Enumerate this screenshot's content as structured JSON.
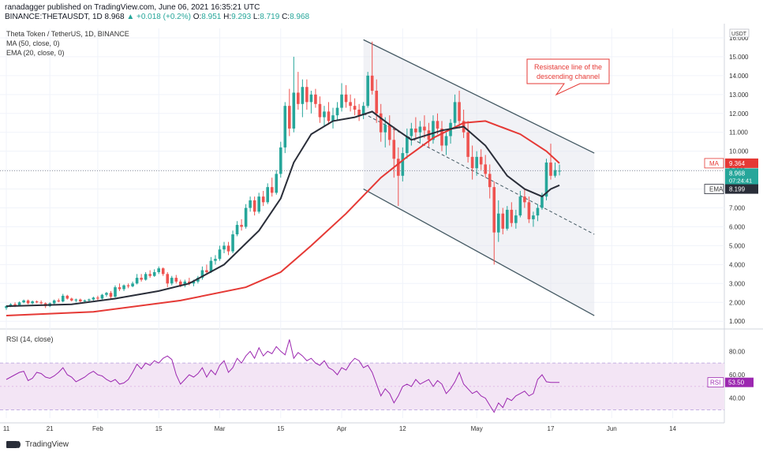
{
  "header": {
    "line1": "ranadagger published on TradingView.com, June 06, 2021 16:35:21 UTC",
    "symbol": "BINANCE:THETAUSDT, 1D",
    "last": "8.968",
    "change": "▲ +0.018 (+0.2%)",
    "ohlc_o_label": "O:",
    "ohlc_o": "8.951",
    "ohlc_h_label": "H:",
    "ohlc_h": "9.293",
    "ohlc_l_label": "L:",
    "ohlc_l": "8.719",
    "ohlc_c_label": "C:",
    "ohlc_c": "8.968"
  },
  "legend": {
    "title": "Theta Token / TetherUS, 1D, BINANCE",
    "ma": "MA (50, close, 0)",
    "ema": "EMA (20, close, 0)",
    "rsi": "RSI (14, close)"
  },
  "annotation": "Resistance line of the descending channel",
  "footer": {
    "brand": "TradingView"
  },
  "colors": {
    "up": "#26a69a",
    "down": "#ef5350",
    "ma": "#e53935",
    "ema": "#2a2e39",
    "rsi": "#9c27b0",
    "rsi_band": "#f3e5f5",
    "channel": "#455a64",
    "channel_fill": "#e0e3eb"
  },
  "chart_data": [
    {
      "type": "candlestick",
      "title": "Theta Token / TetherUS, 1D, BINANCE",
      "currency": "USDT",
      "y_ticks": [
        "1.000",
        "2.000",
        "3.000",
        "4.000",
        "5.000",
        "6.000",
        "7.000",
        "8.000",
        "9.000",
        "10.000",
        "11.000",
        "12.000",
        "13.000",
        "14.000",
        "15.000",
        "16.000"
      ],
      "x_ticks": [
        "11",
        "21",
        "Feb",
        "15",
        "Mar",
        "15",
        "Apr",
        "12",
        "May",
        "17",
        "Jun",
        "14"
      ],
      "ylim": [
        0.8,
        16.5
      ],
      "price_labels": {
        "ma": {
          "label": "MA",
          "value": "9.364"
        },
        "price": {
          "value": "8.968",
          "countdown": "07:24:41"
        },
        "ema": {
          "label": "EMA",
          "value": "8.199"
        }
      },
      "candles": [
        [
          1.7,
          1.85,
          1.6,
          1.8
        ],
        [
          1.8,
          1.95,
          1.75,
          1.9
        ],
        [
          1.9,
          2.0,
          1.75,
          1.8
        ],
        [
          1.8,
          2.05,
          1.78,
          2.0
        ],
        [
          2.0,
          2.15,
          1.95,
          2.1
        ],
        [
          2.1,
          2.15,
          1.9,
          1.95
        ],
        [
          1.95,
          2.1,
          1.9,
          2.05
        ],
        [
          2.05,
          2.1,
          1.95,
          2.0
        ],
        [
          2.0,
          2.1,
          1.9,
          1.95
        ],
        [
          1.95,
          2.0,
          1.7,
          1.8
        ],
        [
          1.8,
          2.0,
          1.75,
          1.95
        ],
        [
          1.95,
          2.15,
          1.9,
          2.1
        ],
        [
          2.1,
          2.2,
          2.0,
          2.05
        ],
        [
          2.05,
          2.45,
          2.0,
          2.35
        ],
        [
          2.35,
          2.4,
          2.15,
          2.2
        ],
        [
          2.2,
          2.25,
          2.05,
          2.1
        ],
        [
          2.1,
          2.2,
          2.0,
          2.15
        ],
        [
          2.15,
          2.2,
          2.0,
          2.05
        ],
        [
          2.05,
          2.15,
          1.95,
          2.1
        ],
        [
          2.1,
          2.2,
          2.0,
          2.15
        ],
        [
          2.15,
          2.3,
          2.1,
          2.25
        ],
        [
          2.25,
          2.35,
          2.1,
          2.2
        ],
        [
          2.2,
          2.45,
          2.15,
          2.4
        ],
        [
          2.4,
          2.55,
          2.3,
          2.5
        ],
        [
          2.5,
          2.6,
          2.2,
          2.3
        ],
        [
          2.3,
          2.9,
          2.25,
          2.8
        ],
        [
          2.8,
          3.0,
          2.6,
          2.7
        ],
        [
          2.7,
          2.95,
          2.6,
          2.9
        ],
        [
          2.9,
          3.0,
          2.75,
          2.85
        ],
        [
          2.85,
          3.1,
          2.8,
          3.0
        ],
        [
          3.0,
          3.5,
          2.95,
          3.3
        ],
        [
          3.3,
          3.5,
          3.1,
          3.2
        ],
        [
          3.2,
          3.6,
          3.15,
          3.5
        ],
        [
          3.5,
          3.7,
          3.3,
          3.4
        ],
        [
          3.4,
          3.75,
          3.35,
          3.6
        ],
        [
          3.6,
          3.9,
          3.5,
          3.8
        ],
        [
          3.8,
          3.85,
          3.4,
          3.5
        ],
        [
          3.5,
          3.6,
          2.8,
          3.0
        ],
        [
          3.0,
          3.4,
          2.9,
          3.3
        ],
        [
          3.3,
          3.45,
          3.0,
          3.1
        ],
        [
          3.1,
          3.2,
          2.8,
          2.9
        ],
        [
          2.9,
          3.2,
          2.8,
          3.1
        ],
        [
          3.1,
          3.3,
          2.9,
          3.0
        ],
        [
          3.0,
          3.2,
          2.85,
          3.1
        ],
        [
          3.1,
          3.4,
          3.0,
          3.3
        ],
        [
          3.3,
          3.9,
          3.2,
          3.7
        ],
        [
          3.7,
          4.0,
          3.5,
          3.6
        ],
        [
          3.6,
          4.4,
          3.55,
          4.2
        ],
        [
          4.2,
          4.5,
          4.0,
          4.3
        ],
        [
          4.3,
          5.0,
          4.2,
          4.8
        ],
        [
          4.8,
          5.2,
          4.6,
          5.0
        ],
        [
          5.0,
          5.2,
          4.5,
          4.7
        ],
        [
          4.7,
          5.8,
          4.6,
          5.6
        ],
        [
          5.6,
          6.3,
          5.5,
          6.1
        ],
        [
          6.1,
          6.4,
          5.8,
          6.0
        ],
        [
          6.0,
          7.2,
          5.9,
          7.0
        ],
        [
          7.0,
          7.6,
          6.8,
          7.4
        ],
        [
          7.4,
          7.6,
          6.6,
          6.8
        ],
        [
          6.8,
          7.8,
          6.7,
          7.6
        ],
        [
          7.6,
          7.9,
          7.1,
          7.3
        ],
        [
          7.3,
          8.3,
          7.2,
          8.1
        ],
        [
          8.1,
          8.6,
          7.6,
          7.8
        ],
        [
          7.8,
          9.0,
          7.7,
          8.8
        ],
        [
          8.8,
          10.5,
          8.6,
          10.2
        ],
        [
          10.2,
          12.6,
          9.9,
          12.4
        ],
        [
          12.4,
          13.3,
          10.8,
          11.2
        ],
        [
          11.2,
          15.0,
          11.0,
          13.1
        ],
        [
          13.1,
          14.2,
          12.2,
          12.5
        ],
        [
          12.5,
          13.8,
          11.8,
          13.4
        ],
        [
          13.4,
          13.8,
          12.2,
          12.6
        ],
        [
          12.6,
          13.2,
          12.0,
          13.0
        ],
        [
          13.0,
          13.3,
          12.3,
          12.5
        ],
        [
          12.5,
          12.9,
          11.5,
          11.8
        ],
        [
          11.8,
          12.4,
          11.3,
          12.1
        ],
        [
          12.1,
          12.6,
          11.4,
          11.6
        ],
        [
          11.6,
          12.3,
          11.2,
          11.9
        ],
        [
          11.9,
          12.6,
          11.6,
          12.3
        ],
        [
          12.3,
          13.6,
          12.1,
          13.0
        ],
        [
          13.0,
          13.5,
          12.3,
          12.6
        ],
        [
          12.6,
          13.0,
          12.1,
          12.4
        ],
        [
          12.4,
          12.8,
          11.9,
          12.2
        ],
        [
          12.2,
          12.5,
          11.6,
          11.9
        ],
        [
          11.9,
          12.6,
          11.7,
          12.4
        ],
        [
          12.4,
          14.2,
          12.3,
          14.0
        ],
        [
          14.0,
          15.8,
          13.0,
          13.2
        ],
        [
          13.2,
          13.8,
          11.5,
          12.0
        ],
        [
          12.0,
          12.5,
          10.5,
          11.0
        ],
        [
          11.0,
          11.8,
          10.2,
          11.4
        ],
        [
          11.4,
          11.9,
          10.3,
          10.6
        ],
        [
          10.6,
          11.3,
          8.6,
          9.6
        ],
        [
          9.6,
          10.2,
          7.1,
          8.7
        ],
        [
          8.7,
          10.2,
          8.4,
          9.9
        ],
        [
          9.9,
          11.2,
          9.6,
          10.8
        ],
        [
          10.8,
          11.5,
          10.3,
          11.2
        ],
        [
          11.2,
          11.8,
          10.6,
          11.0
        ],
        [
          11.0,
          11.6,
          10.4,
          11.3
        ],
        [
          11.3,
          11.9,
          10.7,
          11.1
        ],
        [
          11.1,
          11.5,
          10.2,
          10.6
        ],
        [
          10.6,
          11.9,
          10.4,
          11.6
        ],
        [
          11.6,
          12.0,
          10.9,
          11.2
        ],
        [
          11.2,
          11.6,
          10.0,
          10.3
        ],
        [
          10.3,
          11.0,
          9.8,
          10.8
        ],
        [
          10.8,
          11.7,
          10.4,
          11.5
        ],
        [
          11.5,
          13.0,
          11.2,
          12.6
        ],
        [
          12.6,
          13.2,
          11.2,
          11.6
        ],
        [
          11.6,
          12.2,
          10.7,
          11.0
        ],
        [
          11.0,
          11.6,
          9.4,
          9.7
        ],
        [
          9.7,
          10.3,
          8.5,
          9.1
        ],
        [
          9.1,
          10.0,
          8.7,
          9.7
        ],
        [
          9.7,
          10.1,
          9.0,
          9.3
        ],
        [
          9.3,
          9.8,
          8.6,
          8.8
        ],
        [
          8.8,
          9.3,
          7.5,
          8.1
        ],
        [
          8.1,
          8.4,
          4.0,
          5.7
        ],
        [
          5.7,
          7.4,
          5.2,
          6.7
        ],
        [
          6.7,
          7.0,
          5.6,
          5.9
        ],
        [
          5.9,
          7.1,
          5.8,
          6.9
        ],
        [
          6.9,
          7.3,
          6.0,
          6.2
        ],
        [
          6.2,
          6.9,
          5.9,
          6.6
        ],
        [
          6.6,
          7.9,
          6.5,
          7.6
        ],
        [
          7.6,
          8.0,
          7.0,
          7.3
        ],
        [
          7.3,
          7.6,
          6.2,
          6.4
        ],
        [
          6.4,
          6.8,
          6.0,
          6.6
        ],
        [
          6.6,
          7.2,
          6.3,
          7.0
        ],
        [
          7.0,
          7.8,
          6.9,
          7.6
        ],
        [
          7.6,
          9.6,
          7.4,
          9.4
        ],
        [
          9.4,
          10.4,
          8.5,
          8.7
        ],
        [
          8.7,
          9.4,
          8.6,
          9.0
        ],
        [
          8.951,
          9.293,
          8.719,
          8.968
        ]
      ],
      "ma50": [
        [
          0,
          1.3
        ],
        [
          20,
          1.5
        ],
        [
          40,
          2.1
        ],
        [
          55,
          2.8
        ],
        [
          63,
          3.6
        ],
        [
          70,
          5.0
        ],
        [
          78,
          6.7
        ],
        [
          86,
          8.6
        ],
        [
          92,
          9.7
        ],
        [
          98,
          10.7
        ],
        [
          105,
          11.5
        ],
        [
          110,
          11.6
        ],
        [
          118,
          10.9
        ],
        [
          124,
          10.0
        ],
        [
          127,
          9.364
        ]
      ],
      "ema20": [
        [
          0,
          1.8
        ],
        [
          15,
          1.9
        ],
        [
          25,
          2.2
        ],
        [
          35,
          2.6
        ],
        [
          42,
          3.0
        ],
        [
          50,
          4.0
        ],
        [
          58,
          5.8
        ],
        [
          63,
          7.5
        ],
        [
          66,
          9.4
        ],
        [
          70,
          10.9
        ],
        [
          75,
          11.6
        ],
        [
          80,
          11.8
        ],
        [
          84,
          12.1
        ],
        [
          88,
          11.4
        ],
        [
          93,
          10.6
        ],
        [
          100,
          11.1
        ],
        [
          105,
          11.3
        ],
        [
          110,
          10.3
        ],
        [
          115,
          8.7
        ],
        [
          119,
          8.0
        ],
        [
          123,
          7.6
        ],
        [
          125,
          8.0
        ],
        [
          127,
          8.199
        ]
      ],
      "channel": {
        "upper": [
          [
            82,
            15.9
          ],
          [
            135,
            9.9
          ]
        ],
        "lower": [
          [
            82,
            8.0
          ],
          [
            135,
            1.3
          ]
        ],
        "mid": [
          [
            82,
            12.0
          ],
          [
            135,
            5.6
          ]
        ]
      }
    },
    {
      "type": "line",
      "title": "RSI (14, close)",
      "series": [
        {
          "name": "RSI",
          "values": [
            56,
            58,
            60,
            62,
            63,
            55,
            57,
            62,
            61,
            58,
            57,
            59,
            62,
            66,
            60,
            58,
            54,
            56,
            58,
            61,
            63,
            60,
            59,
            56,
            54,
            56,
            52,
            53,
            56,
            62,
            69,
            65,
            70,
            68,
            72,
            70,
            74,
            76,
            73,
            60,
            52,
            56,
            60,
            58,
            61,
            66,
            58,
            64,
            60,
            68,
            72,
            62,
            66,
            74,
            70,
            76,
            80,
            74,
            83,
            76,
            80,
            78,
            84,
            80,
            77,
            90,
            74,
            79,
            76,
            72,
            74,
            70,
            68,
            72,
            66,
            64,
            60,
            66,
            64,
            70,
            74,
            72,
            66,
            68,
            62,
            52,
            42,
            48,
            44,
            36,
            42,
            50,
            52,
            50,
            56,
            52,
            54,
            56,
            50,
            55,
            52,
            44,
            48,
            54,
            62,
            52,
            48,
            44,
            46,
            42,
            40,
            34,
            28,
            36,
            32,
            40,
            38,
            42,
            44,
            46,
            42,
            44,
            56,
            60,
            54,
            53.5,
            53.5,
            53.5
          ]
        }
      ],
      "value_label": {
        "label": "RSI",
        "value": "53.50"
      },
      "y_ticks": [
        "40.00",
        "60.00",
        "80.00"
      ],
      "ylim": [
        23,
        95
      ],
      "bands": [
        30,
        70
      ]
    }
  ]
}
